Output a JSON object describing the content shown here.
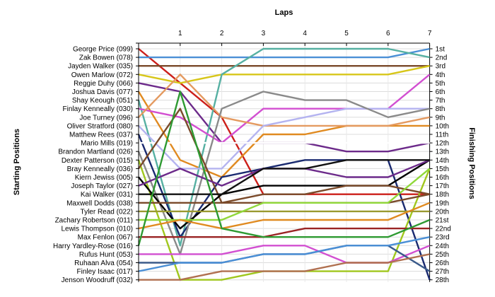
{
  "chart_data": {
    "type": "line",
    "xlabel": "Laps",
    "ylabel_left": "Starting Positions",
    "ylabel_right": "Finishing Positions",
    "x_ticks": [
      "1",
      "2",
      "3",
      "4",
      "5",
      "6",
      "7"
    ],
    "position_range": [
      1,
      28
    ],
    "grid": "horizontal",
    "starting_grid": [
      "George Price (099)",
      "Zak Bowen (078)",
      "Jayden Walker (035)",
      "Owen Marlow (072)",
      "Reggie Duhy (066)",
      "Joshua Davis (077)",
      "Shay Keough (051)",
      "Finlay Kenneally (030)",
      "Joe Turney (096)",
      "Oliver Stratford (080)",
      "Matthew Rees (037)",
      "Mario Mills (019)",
      "Brandon Martland (026)",
      "Dexter Patterson (015)",
      "Bray Kenneally (036)",
      "Kiern Jewiss (005)",
      "Joseph Taylor (027)",
      "Kai Walker (031)",
      "Maxwell Dodds (038)",
      "Tyler Read (022)",
      "Zachary Robertson (011)",
      "Lewis Thompson (010)",
      "Max Fenlon (067)",
      "Harry Yardley-Rose (016)",
      "Rufus Hunt (053)",
      "Ruhaan Alva (054)",
      "Finley Isaac (017)",
      "Jenson Woodruff (032)"
    ],
    "finishing_labels": [
      "1st",
      "2nd",
      "3rd",
      "4th",
      "5th",
      "6th",
      "7th",
      "8th",
      "9th",
      "10th",
      "11th",
      "12th",
      "13th",
      "14th",
      "15th",
      "16th",
      "17th",
      "18th",
      "19th",
      "20th",
      "21st",
      "22nd",
      "23rd",
      "24th",
      "25th",
      "26th",
      "27th",
      "28th"
    ],
    "series": [
      {
        "start": 1,
        "color": "#cc1f1a",
        "positions": [
          5,
          9,
          18,
          18,
          18,
          18,
          18
        ]
      },
      {
        "start": 2,
        "color": "#4a8fd6",
        "positions": [
          2,
          2,
          2,
          2,
          2,
          2,
          1
        ]
      },
      {
        "start": 3,
        "color": "#7a4a2a",
        "positions": [
          3,
          3,
          3,
          3,
          3,
          3,
          3
        ]
      },
      {
        "start": 4,
        "color": "#d7c619",
        "positions": [
          5,
          4,
          4,
          4,
          4,
          4,
          3
        ]
      },
      {
        "start": 5,
        "color": "#6c2a8a",
        "positions": [
          6,
          12,
          12,
          12,
          13,
          13,
          12
        ]
      },
      {
        "start": 6,
        "color": "#e08a20",
        "positions": [
          14,
          16,
          11,
          11,
          10,
          10,
          10
        ]
      },
      {
        "start": 7,
        "color": "#56b0a2",
        "positions": [
          24,
          4,
          1,
          1,
          1,
          1,
          2
        ]
      },
      {
        "start": 8,
        "color": "#d24fd1",
        "positions": [
          9,
          12,
          8,
          8,
          8,
          8,
          4
        ]
      },
      {
        "start": 9,
        "color": "#e49a60",
        "positions": [
          4,
          9,
          10,
          10,
          10,
          10,
          9
        ]
      },
      {
        "start": 10,
        "color": "#b4b3f0",
        "positions": [
          15,
          15,
          10,
          9,
          8,
          8,
          8
        ]
      },
      {
        "start": 11,
        "color": "#1a2a70",
        "positions": [
          23,
          16,
          15,
          14,
          14,
          14,
          28
        ]
      },
      {
        "start": 12,
        "color": "#ffffff",
        "positions": [
          12,
          12,
          12,
          12,
          12,
          12,
          12
        ]
      },
      {
        "start": 13,
        "color": "#8a8a8a",
        "positions": [
          25,
          8,
          6,
          7,
          7,
          9,
          8
        ]
      },
      {
        "start": 14,
        "color": "#a0c71e",
        "positions": [
          28,
          28,
          27,
          27,
          27,
          27,
          15
        ]
      },
      {
        "start": 15,
        "color": "#7a4a2a",
        "positions": [
          8,
          19,
          19,
          19,
          19,
          19,
          18
        ]
      },
      {
        "start": 16,
        "color": "#000000",
        "positions": [
          22,
          18,
          17,
          17,
          17,
          17,
          14
        ]
      },
      {
        "start": 17,
        "color": "#6c2a8a",
        "positions": [
          15,
          17,
          15,
          15,
          16,
          16,
          14
        ]
      },
      {
        "start": 18,
        "color": "#111111",
        "positions": [
          18,
          18,
          15,
          15,
          14,
          14,
          14
        ]
      },
      {
        "start": 19,
        "color": "#7a4a2a",
        "positions": [
          19,
          19,
          18,
          18,
          17,
          17,
          18
        ]
      },
      {
        "start": 20,
        "color": "#9a9a30",
        "positions": [
          20,
          20,
          20,
          20,
          20,
          20,
          20
        ]
      },
      {
        "start": 21,
        "color": "#90d83a",
        "positions": [
          21,
          21,
          19,
          19,
          19,
          19,
          15
        ]
      },
      {
        "start": 22,
        "color": "#e08a20",
        "positions": [
          21,
          22,
          21,
          21,
          21,
          21,
          19
        ]
      },
      {
        "start": 23,
        "color": "#9a2424",
        "positions": [
          23,
          23,
          23,
          22,
          22,
          22,
          22
        ]
      },
      {
        "start": 24,
        "color": "#2e9a32",
        "positions": [
          6,
          22,
          23,
          23,
          23,
          23,
          21
        ]
      },
      {
        "start": 25,
        "color": "#d24fd1",
        "positions": [
          25,
          25,
          24,
          24,
          26,
          26,
          24
        ]
      },
      {
        "start": 26,
        "color": "#3a5a8a",
        "positions": [
          26,
          26,
          25,
          25,
          24,
          24,
          27
        ]
      },
      {
        "start": 27,
        "color": "#4a8fd6",
        "positions": [
          26,
          26,
          25,
          25,
          24,
          24,
          23
        ]
      },
      {
        "start": 28,
        "color": "#b07050",
        "positions": [
          28,
          27,
          27,
          27,
          26,
          26,
          25
        ]
      }
    ]
  }
}
